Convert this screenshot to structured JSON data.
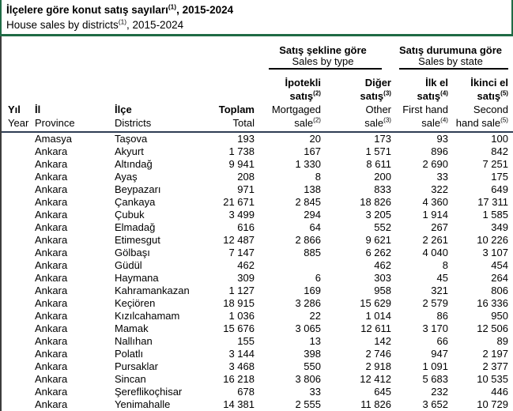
{
  "title": {
    "tr_pre": "İlçelere göre konut satış sayıları",
    "sup": "(1)",
    "tr_post": ", 2015-2024",
    "en_pre": "House sales by districts",
    "en_post": ", 2015-2024"
  },
  "colors": {
    "accent_green": "#1f6b45",
    "header_rule": "#2f3d54",
    "group_underline": "#000000"
  },
  "table": {
    "groups": [
      {
        "tr": "Satış şekline göre",
        "en": "Sales by type"
      },
      {
        "tr": "Satış durumuna göre",
        "en": "Sales by state"
      }
    ],
    "columns": [
      {
        "key": "year",
        "align": "left",
        "tr1": "Yıl",
        "en1": "Year"
      },
      {
        "key": "province",
        "align": "left",
        "tr1": "İl",
        "en1": "Province"
      },
      {
        "key": "district",
        "align": "left",
        "tr1": "İlçe",
        "en1": "Districts"
      },
      {
        "key": "total",
        "align": "right",
        "tr1": "Toplam",
        "en1": "Total"
      },
      {
        "key": "mortgaged",
        "align": "right",
        "tr1": "İpotekli",
        "tr2": "satış",
        "sup": "(2)",
        "en1": "Mortgaged",
        "en2": "sale"
      },
      {
        "key": "other",
        "align": "right",
        "tr1": "Diğer",
        "tr2": "satış",
        "sup": "(3)",
        "en1": "Other",
        "en2": "sale"
      },
      {
        "key": "first_hand",
        "align": "right",
        "tr1": "İlk el",
        "tr2": "satış",
        "sup": "(4)",
        "en1": "First hand",
        "en2": "sale"
      },
      {
        "key": "second_hand",
        "align": "right",
        "tr1": "İkinci el",
        "tr2": "satış",
        "sup": "(5)",
        "en1": "Second",
        "en2": "hand sale"
      }
    ],
    "rows": [
      [
        "",
        "Amasya",
        "Taşova",
        "193",
        "20",
        "173",
        "93",
        "100"
      ],
      [
        "",
        "Ankara",
        "Akyurt",
        "1 738",
        "167",
        "1 571",
        "896",
        "842"
      ],
      [
        "",
        "Ankara",
        "Altındağ",
        "9 941",
        "1 330",
        "8 611",
        "2 690",
        "7 251"
      ],
      [
        "",
        "Ankara",
        "Ayaş",
        "208",
        "8",
        "200",
        "33",
        "175"
      ],
      [
        "",
        "Ankara",
        "Beypazarı",
        "971",
        "138",
        "833",
        "322",
        "649"
      ],
      [
        "",
        "Ankara",
        "Çankaya",
        "21 671",
        "2 845",
        "18 826",
        "4 360",
        "17 311"
      ],
      [
        "",
        "Ankara",
        "Çubuk",
        "3 499",
        "294",
        "3 205",
        "1 914",
        "1 585"
      ],
      [
        "",
        "Ankara",
        "Elmadağ",
        "616",
        "64",
        "552",
        "267",
        "349"
      ],
      [
        "",
        "Ankara",
        "Etimesgut",
        "12 487",
        "2 866",
        "9 621",
        "2 261",
        "10 226"
      ],
      [
        "",
        "Ankara",
        "Gölbaşı",
        "7 147",
        "885",
        "6 262",
        "4 040",
        "3 107"
      ],
      [
        "",
        "Ankara",
        "Güdül",
        "462",
        "",
        "462",
        "8",
        "454"
      ],
      [
        "",
        "Ankara",
        "Haymana",
        "309",
        "6",
        "303",
        "45",
        "264"
      ],
      [
        "",
        "Ankara",
        "Kahramankazan",
        "1 127",
        "169",
        "958",
        "321",
        "806"
      ],
      [
        "",
        "Ankara",
        "Keçiören",
        "18 915",
        "3 286",
        "15 629",
        "2 579",
        "16 336"
      ],
      [
        "",
        "Ankara",
        "Kızılcahamam",
        "1 036",
        "22",
        "1 014",
        "86",
        "950"
      ],
      [
        "",
        "Ankara",
        "Mamak",
        "15 676",
        "3 065",
        "12 611",
        "3 170",
        "12 506"
      ],
      [
        "",
        "Ankara",
        "Nallıhan",
        "155",
        "13",
        "142",
        "66",
        "89"
      ],
      [
        "",
        "Ankara",
        "Polatlı",
        "3 144",
        "398",
        "2 746",
        "947",
        "2 197"
      ],
      [
        "",
        "Ankara",
        "Pursaklar",
        "3 468",
        "550",
        "2 918",
        "1 091",
        "2 377"
      ],
      [
        "",
        "Ankara",
        "Sincan",
        "16 218",
        "3 806",
        "12 412",
        "5 683",
        "10 535"
      ],
      [
        "",
        "Ankara",
        "Şereflikoçhisar",
        "678",
        "33",
        "645",
        "232",
        "446"
      ],
      [
        "",
        "Ankara",
        "Yenimahalle",
        "14 381",
        "2 555",
        "11 826",
        "3 652",
        "10 729"
      ]
    ]
  }
}
